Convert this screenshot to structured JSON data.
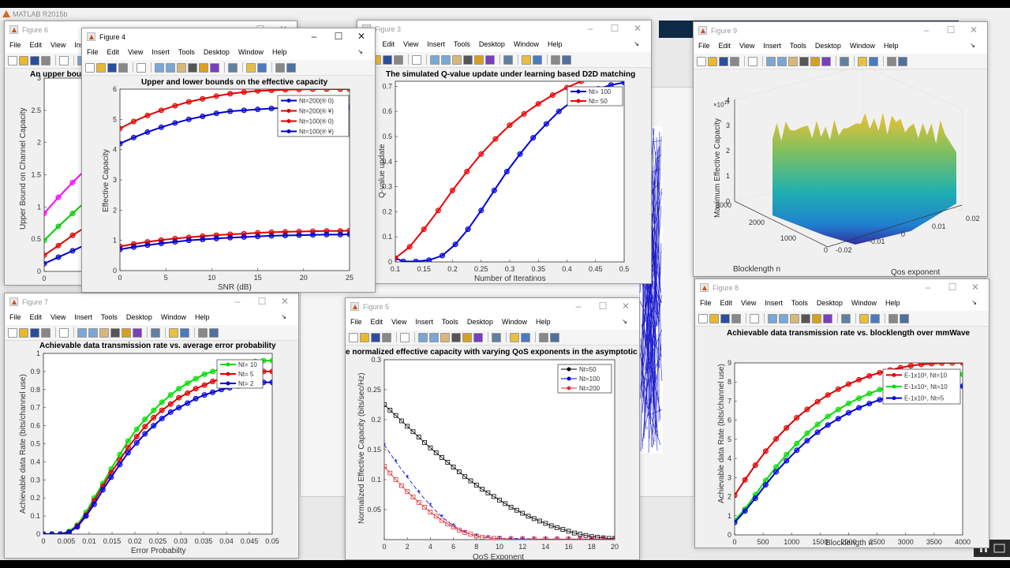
{
  "app": {
    "title": "MATLAB R2015b"
  },
  "menu_items": [
    "File",
    "Edit",
    "View",
    "Insert",
    "Tools",
    "Desktop",
    "Window",
    "Help"
  ],
  "windows": {
    "fig6": {
      "title": "Figure 6",
      "plot_title": "An upper bou",
      "ylabel": "Upper Bound on Channel Capacity",
      "x_tick": "0"
    },
    "fig4": {
      "title": "Figure 4",
      "plot_title": "Upper and lower bounds on the effective capacity",
      "xlabel": "SNR (dB)",
      "ylabel": "Effective Capacity"
    },
    "fig3": {
      "title": "Figure 3",
      "plot_title": "The simulated Q-value update under learning based D2D matching",
      "xlabel": "Number of Iteratinos",
      "ylabel": "Q-value update"
    },
    "fig9": {
      "title": "Figure 9",
      "zlabel": "Maximum Effective Capacity",
      "xlabel": "Blocklength n",
      "ylabel": "Qos exponent",
      "z_multiplier": "×10",
      "z_exp": "15"
    },
    "fig7": {
      "title": "Figure 7",
      "plot_title": "Achievable data transmission rate vs. average error probability",
      "xlabel": "Error Probabilty",
      "ylabel": "Achievable data Rate (bits/channel use)"
    },
    "fig5": {
      "title": "Figure 5",
      "plot_title": "e normalized effective capacity with varying QoS exponents in the asymptotic r",
      "xlabel": "QoS Exponent",
      "ylabel": "Normalized Effective Capacity (bits/sec/Hz)"
    },
    "fig8": {
      "title": "Figure 8",
      "plot_title": "Achievable data transmission rate vs. blocklength over mmWave",
      "xlabel": "Blocklength n",
      "ylabel": "Achievable data Rate (bits/channel use)"
    }
  },
  "chart_data": [
    {
      "id": "fig6",
      "type": "line",
      "title": "An upper bou",
      "ylabel": "Upper Bound on Channel Capacity",
      "ylim": [
        0,
        3
      ],
      "yticks": [
        "0",
        "0.5",
        "1",
        "1.5",
        "2",
        "2.5",
        "3"
      ],
      "series": [
        {
          "name": "magenta",
          "color": "#ff00ff",
          "values": [
            0.9,
            1.15,
            1.38,
            1.6,
            1.72
          ]
        },
        {
          "name": "green",
          "color": "#00cc00",
          "values": [
            0.48,
            0.7,
            0.9,
            1.1,
            1.2
          ]
        },
        {
          "name": "red",
          "color": "#e00000",
          "values": [
            0.25,
            0.4,
            0.56,
            0.7,
            0.8
          ]
        },
        {
          "name": "blue",
          "color": "#0000cc",
          "values": [
            0.12,
            0.22,
            0.32,
            0.42,
            0.5
          ]
        }
      ]
    },
    {
      "id": "fig4",
      "type": "line",
      "title": "Upper and lower bounds on the effective capacity",
      "xlabel": "SNR (dB)",
      "ylabel": "Effective Capacity",
      "xlim": [
        0,
        25
      ],
      "ylim": [
        0,
        6
      ],
      "xticks": [
        "0",
        "5",
        "10",
        "15",
        "20",
        "25"
      ],
      "yticks": [
        "0",
        "1",
        "2",
        "3",
        "4",
        "5",
        "6"
      ],
      "x": [
        0,
        1.5,
        3,
        4.5,
        6,
        7.5,
        9,
        10.5,
        12,
        13.5,
        15,
        16.5,
        18,
        19.5,
        21,
        22.5,
        24,
        25
      ],
      "legend": [
        "Nt=200(® 0)",
        "Nt=200(® ¥)",
        "Nt=100(® 0)",
        "Nt=100(® ¥)"
      ],
      "series": [
        {
          "name": "Nt=200(® 0)",
          "color": "#0000cc",
          "values": [
            4.2,
            4.4,
            4.58,
            4.74,
            4.88,
            5.0,
            5.1,
            5.2,
            5.27,
            5.3,
            5.33,
            5.36,
            5.38,
            5.39,
            5.4,
            5.4,
            5.4,
            5.4
          ]
        },
        {
          "name": "Nt=200(® ¥)",
          "color": "#e00000",
          "values": [
            4.7,
            4.93,
            5.13,
            5.3,
            5.45,
            5.58,
            5.68,
            5.77,
            5.85,
            5.9,
            5.94,
            5.96,
            5.98,
            5.99,
            6.0,
            6.0,
            6.0,
            6.0
          ]
        },
        {
          "name": "Nt=100(® 0)",
          "color": "#e00000",
          "values": [
            0.8,
            0.88,
            0.95,
            1.01,
            1.06,
            1.1,
            1.14,
            1.17,
            1.2,
            1.22,
            1.25,
            1.27,
            1.28,
            1.29,
            1.3,
            1.31,
            1.31,
            1.32
          ]
        },
        {
          "name": "Nt=100(® ¥)",
          "color": "#0000cc",
          "values": [
            0.7,
            0.78,
            0.84,
            0.9,
            0.95,
            1.0,
            1.03,
            1.06,
            1.09,
            1.11,
            1.13,
            1.15,
            1.16,
            1.17,
            1.18,
            1.19,
            1.19,
            1.2
          ]
        }
      ]
    },
    {
      "id": "fig3",
      "type": "line",
      "title": "The simulated Q-value update under learning based D2D matching",
      "xlabel": "Number of Iteratinos",
      "xlim": [
        0.1,
        0.5
      ],
      "ylim": [
        0,
        0.72
      ],
      "xticks": [
        "0.1",
        "0.15",
        "0.2",
        "0.25",
        "0.3",
        "0.35",
        "0.4",
        "0.45",
        "0.5"
      ],
      "yticks": [
        "0",
        "0.1",
        "0.2",
        "0.3",
        "0.4",
        "0.5",
        "0.6",
        "0.7"
      ],
      "legend": [
        "Nt= 100",
        "Nt= 50"
      ],
      "series": [
        {
          "name": "Nt= 100",
          "color": "#0000dd",
          "x": [
            0.1,
            0.114,
            0.136,
            0.159,
            0.182,
            0.205,
            0.227,
            0.25,
            0.273,
            0.295,
            0.318,
            0.341,
            0.364,
            0.386,
            0.409,
            0.432,
            0.455,
            0.477,
            0.5
          ],
          "values": [
            0.015,
            0.002,
            0.002,
            0.007,
            0.025,
            0.07,
            0.13,
            0.205,
            0.285,
            0.36,
            0.43,
            0.495,
            0.55,
            0.6,
            0.64,
            0.67,
            0.69,
            0.705,
            0.715
          ]
        },
        {
          "name": "Nt= 50",
          "color": "#ee0000",
          "x": [
            0.1,
            0.125,
            0.15,
            0.175,
            0.2,
            0.225,
            0.25,
            0.275,
            0.3,
            0.325,
            0.35,
            0.375,
            0.4,
            0.425
          ],
          "values": [
            0.015,
            0.06,
            0.13,
            0.205,
            0.285,
            0.36,
            0.43,
            0.49,
            0.545,
            0.59,
            0.63,
            0.665,
            0.695,
            0.72
          ]
        }
      ]
    },
    {
      "id": "fig9",
      "type": "surface",
      "title": "",
      "xlabel": "Blocklength n",
      "ylabel": "Qos exponent",
      "zlabel": "Maximum Effective Capacity",
      "xticks": [
        "0",
        "1000",
        "2000",
        "3000"
      ],
      "yticks": [
        "-0.02",
        "-0.01",
        "0",
        "0.01",
        "0.02"
      ],
      "zticks": [
        "0",
        "1",
        "2",
        "3",
        "4"
      ],
      "z_scale": "×10^15"
    },
    {
      "id": "fig7",
      "type": "line",
      "title": "Achievable data transmission rate vs. average error probability",
      "xlabel": "Error Probabilty",
      "ylabel": "Achievable data Rate (bits/channel use)",
      "xlim": [
        0,
        0.05
      ],
      "ylim": [
        0,
        1
      ],
      "xticks": [
        "0",
        "0.005",
        "0.01",
        "0.015",
        "0.02",
        "0.025",
        "0.03",
        "0.035",
        "0.04",
        "0.045",
        "0.05"
      ],
      "yticks": [
        "0",
        "0.1",
        "0.2",
        "0.3",
        "0.4",
        "0.5",
        "0.6",
        "0.7",
        "0.8",
        "0.9",
        "1"
      ],
      "legend": [
        "Nt= 10",
        "Nt= 5",
        "Nt= 2"
      ],
      "x": [
        0,
        0.00185,
        0.0037,
        0.0056,
        0.0074,
        0.0093,
        0.0111,
        0.013,
        0.0148,
        0.0167,
        0.0185,
        0.0204,
        0.0222,
        0.0241,
        0.0259,
        0.0278,
        0.0296,
        0.0315,
        0.0333,
        0.0352,
        0.037,
        0.0389,
        0.0407,
        0.0426,
        0.0444,
        0.0463,
        0.0481,
        0.05
      ],
      "series": [
        {
          "name": "Nt= 10",
          "color": "#00dd00",
          "values": [
            0,
            0,
            0,
            0.015,
            0.05,
            0.12,
            0.2,
            0.28,
            0.36,
            0.44,
            0.515,
            0.58,
            0.635,
            0.685,
            0.73,
            0.77,
            0.805,
            0.835,
            0.86,
            0.885,
            0.9,
            0.915,
            0.93,
            0.94,
            0.95,
            0.955,
            0.96,
            0.96
          ]
        },
        {
          "name": "Nt= 5",
          "color": "#dd0000",
          "values": [
            0,
            0,
            0,
            0.01,
            0.045,
            0.105,
            0.185,
            0.265,
            0.34,
            0.41,
            0.48,
            0.54,
            0.595,
            0.645,
            0.685,
            0.72,
            0.755,
            0.78,
            0.805,
            0.825,
            0.845,
            0.86,
            0.87,
            0.88,
            0.89,
            0.895,
            0.9,
            0.9
          ]
        },
        {
          "name": "Nt= 2",
          "color": "#0000dd",
          "values": [
            0,
            0,
            0,
            0.01,
            0.04,
            0.1,
            0.165,
            0.245,
            0.315,
            0.385,
            0.45,
            0.505,
            0.555,
            0.6,
            0.64,
            0.675,
            0.7,
            0.725,
            0.75,
            0.77,
            0.785,
            0.8,
            0.81,
            0.82,
            0.83,
            0.835,
            0.84,
            0.84
          ]
        }
      ]
    },
    {
      "id": "fig5",
      "type": "line",
      "title": "e normalized effective capacity with varying QoS exponents in the asymptotic r",
      "xlabel": "QoS Exponent",
      "ylabel": "Normalized Effective Capacity (bits/sec/Hz)",
      "xlim": [
        0,
        20
      ],
      "ylim": [
        0,
        0.3
      ],
      "xticks": [
        "0",
        "2",
        "4",
        "6",
        "8",
        "10",
        "12",
        "14",
        "16",
        "18",
        "20"
      ],
      "yticks": [
        "0.05",
        "0.1",
        "0.15",
        "0.2",
        "0.25",
        "0.3"
      ],
      "legend": [
        "Nt=50",
        "Nt=100",
        "Nt=200"
      ],
      "series": [
        {
          "name": "Nt=50",
          "color": "#000000",
          "marker": "square",
          "x": [
            0,
            0.5,
            1,
            1.5,
            2,
            2.5,
            3,
            3.5,
            4,
            4.5,
            5,
            5.5,
            6,
            6.5,
            7,
            7.5,
            8,
            8.5,
            9,
            9.5,
            10,
            10.5,
            11,
            11.5,
            12,
            12.5,
            13,
            13.5,
            14,
            14.5,
            15,
            15.5,
            16,
            16.5,
            17,
            17.5,
            18,
            18.5,
            19,
            19.5,
            20
          ],
          "values": [
            0.225,
            0.216,
            0.207,
            0.198,
            0.189,
            0.18,
            0.171,
            0.162,
            0.153,
            0.145,
            0.137,
            0.129,
            0.121,
            0.113,
            0.105,
            0.098,
            0.091,
            0.084,
            0.078,
            0.072,
            0.066,
            0.06,
            0.054,
            0.049,
            0.044,
            0.039,
            0.035,
            0.031,
            0.027,
            0.023,
            0.02,
            0.017,
            0.014,
            0.011,
            0.009,
            0.007,
            0.005,
            0.004,
            0.003,
            0.002,
            0.002
          ]
        },
        {
          "name": "Nt=100",
          "color": "#0000dd",
          "marker": "asterisk",
          "x": [
            0,
            1,
            2,
            3,
            4,
            5,
            6,
            7,
            8,
            9,
            10,
            11,
            12,
            13,
            14,
            15,
            16,
            17,
            18,
            19,
            20
          ],
          "values": [
            0.158,
            0.13,
            0.104,
            0.079,
            0.057,
            0.038,
            0.023,
            0.012,
            0.006,
            0.003,
            0.002,
            0.002,
            0.002,
            0.001,
            0.001,
            0.001,
            0.001,
            0.001,
            0.001,
            0.001,
            0.001
          ]
        },
        {
          "name": "Nt=200",
          "color": "#e03030",
          "marker": "square",
          "x": [
            0,
            0.5,
            1,
            1.5,
            2,
            2.5,
            3,
            3.5,
            4,
            4.5,
            5,
            5.5,
            6,
            6.5,
            7,
            7.5,
            8,
            8.5,
            9,
            9.5,
            10,
            11,
            12,
            13,
            14,
            15,
            16,
            17,
            18,
            19,
            20
          ],
          "values": [
            0.122,
            0.111,
            0.1,
            0.09,
            0.08,
            0.071,
            0.062,
            0.054,
            0.046,
            0.039,
            0.032,
            0.026,
            0.021,
            0.016,
            0.012,
            0.009,
            0.006,
            0.004,
            0.003,
            0.002,
            0.002,
            0.001,
            0.001,
            0.001,
            0.001,
            0.001,
            0.001,
            0.001,
            0.001,
            0.001,
            0.001
          ]
        }
      ]
    },
    {
      "id": "fig8",
      "type": "line",
      "title": "Achievable data transmission rate vs. blocklength over mmWave",
      "xlabel": "Blocklength n",
      "ylabel": "Achievable data Rate (bits/channel use)",
      "xlim": [
        0,
        4000
      ],
      "ylim": [
        0,
        9
      ],
      "xticks": [
        "0",
        "500",
        "1000",
        "1500",
        "2000",
        "2500",
        "3000",
        "3500",
        "4000"
      ],
      "yticks": [
        "0",
        "1",
        "2",
        "3",
        "4",
        "5",
        "6",
        "7",
        "8",
        "9"
      ],
      "legend": [
        "E-1x10^3, Nt=10",
        "E-1x10^6, Nt=10",
        "E-1x10^6, Nt=5"
      ],
      "x": [
        0,
        182,
        364,
        545,
        727,
        909,
        1091,
        1273,
        1455,
        1636,
        1818,
        2000,
        2182,
        2364,
        2545,
        2727,
        2909,
        3091,
        3273,
        3455,
        3636,
        3818,
        4000
      ],
      "series": [
        {
          "name": "E-1x10^3, Nt=10",
          "color": "#dd0000",
          "values": [
            2.07,
            2.88,
            3.65,
            4.38,
            5.02,
            5.6,
            6.13,
            6.57,
            6.97,
            7.32,
            7.62,
            7.89,
            8.12,
            8.32,
            8.49,
            8.63,
            8.75,
            8.85,
            8.92,
            8.96,
            8.99,
            9.0,
            9.0
          ]
        },
        {
          "name": "E-1x10^6, Nt=10",
          "color": "#00dd00",
          "values": [
            0.75,
            1.35,
            2.1,
            2.85,
            3.55,
            4.2,
            4.78,
            5.32,
            5.78,
            6.2,
            6.56,
            6.88,
            7.15,
            7.4,
            7.6,
            7.78,
            7.93,
            8.05,
            8.16,
            8.25,
            8.32,
            8.37,
            8.4
          ]
        },
        {
          "name": "E-1x10^6, Nt=5",
          "color": "#0000dd",
          "values": [
            0.65,
            1.25,
            1.92,
            2.62,
            3.3,
            3.88,
            4.43,
            4.93,
            5.37,
            5.75,
            6.08,
            6.39,
            6.65,
            6.87,
            7.07,
            7.23,
            7.37,
            7.48,
            7.58,
            7.65,
            7.71,
            7.75,
            7.78
          ]
        }
      ]
    }
  ]
}
